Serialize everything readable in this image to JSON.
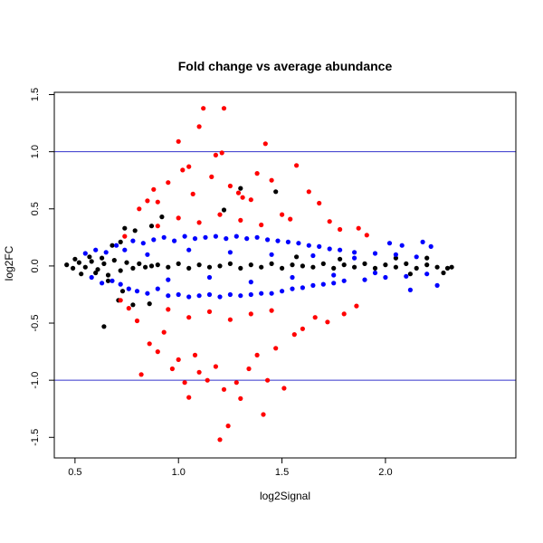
{
  "chart_data": {
    "type": "scatter",
    "title": "Fold change vs average abundance",
    "xlabel": "log2Signal",
    "ylabel": "log2FC",
    "xlim": [
      0.4,
      2.63
    ],
    "ylim": [
      -1.68,
      1.52
    ],
    "xticks": [
      0.5,
      1.0,
      1.5,
      2.0
    ],
    "xtick_labels": [
      "0.5",
      "1.0",
      "1.5",
      "2.0"
    ],
    "yticks": [
      -1.5,
      -1.0,
      -0.5,
      0.0,
      0.5,
      1.0,
      1.5
    ],
    "ytick_labels": [
      "-1.5",
      "-1.0",
      "-0.5",
      "0.0",
      "0.5",
      "1.0",
      "1.5"
    ],
    "grid": false,
    "reference_lines": {
      "y": [
        1.0,
        -1.0
      ],
      "color": "#3333cc"
    },
    "series": [
      {
        "color": "#000000",
        "points": [
          [
            0.46,
            0.01
          ],
          [
            0.49,
            -0.02
          ],
          [
            0.52,
            0.03
          ],
          [
            0.55,
            -0.01
          ],
          [
            0.58,
            0.04
          ],
          [
            0.61,
            -0.03
          ],
          [
            0.64,
            0.02
          ],
          [
            0.5,
            0.06
          ],
          [
            0.53,
            -0.07
          ],
          [
            0.57,
            0.08
          ],
          [
            0.6,
            -0.06
          ],
          [
            0.63,
            0.07
          ],
          [
            0.66,
            -0.08
          ],
          [
            0.69,
            0.05
          ],
          [
            0.72,
            -0.04
          ],
          [
            0.75,
            0.03
          ],
          [
            0.78,
            -0.02
          ],
          [
            0.81,
            0.02
          ],
          [
            0.84,
            -0.01
          ],
          [
            0.87,
            0.0
          ],
          [
            0.9,
            0.01
          ],
          [
            0.95,
            -0.01
          ],
          [
            1.0,
            0.02
          ],
          [
            1.05,
            -0.02
          ],
          [
            1.1,
            0.01
          ],
          [
            1.15,
            -0.01
          ],
          [
            1.2,
            0.0
          ],
          [
            1.25,
            0.02
          ],
          [
            1.3,
            -0.02
          ],
          [
            1.35,
            0.01
          ],
          [
            1.4,
            -0.01
          ],
          [
            1.45,
            0.02
          ],
          [
            1.5,
            -0.02
          ],
          [
            1.55,
            0.01
          ],
          [
            1.6,
            0.0
          ],
          [
            1.65,
            -0.01
          ],
          [
            1.7,
            0.02
          ],
          [
            1.75,
            -0.02
          ],
          [
            1.8,
            0.01
          ],
          [
            1.85,
            -0.01
          ],
          [
            1.9,
            0.02
          ],
          [
            1.95,
            -0.02
          ],
          [
            2.0,
            0.01
          ],
          [
            2.05,
            -0.01
          ],
          [
            2.1,
            0.02
          ],
          [
            2.15,
            -0.02
          ],
          [
            2.2,
            0.01
          ],
          [
            2.25,
            -0.01
          ],
          [
            2.3,
            -0.02
          ],
          [
            2.32,
            -0.01
          ],
          [
            0.64,
            -0.53
          ],
          [
            0.68,
            0.18
          ],
          [
            0.66,
            -0.13
          ],
          [
            0.72,
            0.21
          ],
          [
            0.73,
            -0.22
          ],
          [
            0.74,
            0.33
          ],
          [
            0.71,
            -0.3
          ],
          [
            0.78,
            -0.34
          ],
          [
            0.79,
            0.31
          ],
          [
            0.86,
            -0.33
          ],
          [
            0.87,
            0.35
          ],
          [
            0.92,
            0.43
          ],
          [
            1.22,
            0.49
          ],
          [
            1.3,
            0.68
          ],
          [
            1.47,
            0.65
          ],
          [
            1.57,
            0.08
          ],
          [
            1.78,
            0.06
          ],
          [
            2.05,
            0.07
          ],
          [
            2.12,
            -0.07
          ],
          [
            2.2,
            0.07
          ],
          [
            2.28,
            -0.06
          ]
        ]
      },
      {
        "color": "#0000ff",
        "points": [
          [
            0.55,
            0.11
          ],
          [
            0.58,
            -0.1
          ],
          [
            0.6,
            0.14
          ],
          [
            0.63,
            -0.15
          ],
          [
            0.65,
            0.12
          ],
          [
            0.68,
            -0.13
          ],
          [
            0.7,
            0.18
          ],
          [
            0.72,
            -0.16
          ],
          [
            0.74,
            0.14
          ],
          [
            0.76,
            -0.2
          ],
          [
            0.78,
            0.22
          ],
          [
            0.8,
            -0.22
          ],
          [
            0.83,
            0.2
          ],
          [
            0.85,
            -0.24
          ],
          [
            0.88,
            0.23
          ],
          [
            0.9,
            -0.2
          ],
          [
            0.93,
            0.25
          ],
          [
            0.95,
            -0.26
          ],
          [
            0.98,
            0.22
          ],
          [
            1.0,
            -0.25
          ],
          [
            1.03,
            0.26
          ],
          [
            1.05,
            -0.27
          ],
          [
            1.08,
            0.24
          ],
          [
            1.1,
            -0.26
          ],
          [
            1.13,
            0.25
          ],
          [
            1.15,
            -0.25
          ],
          [
            1.18,
            0.26
          ],
          [
            1.2,
            -0.27
          ],
          [
            1.23,
            0.24
          ],
          [
            1.25,
            -0.25
          ],
          [
            1.28,
            0.26
          ],
          [
            1.3,
            -0.26
          ],
          [
            1.33,
            0.24
          ],
          [
            1.35,
            -0.25
          ],
          [
            1.38,
            0.25
          ],
          [
            1.4,
            -0.24
          ],
          [
            1.43,
            0.23
          ],
          [
            1.45,
            -0.24
          ],
          [
            1.48,
            0.22
          ],
          [
            1.5,
            -0.22
          ],
          [
            1.53,
            0.21
          ],
          [
            1.55,
            -0.2
          ],
          [
            1.58,
            0.2
          ],
          [
            1.6,
            -0.19
          ],
          [
            1.63,
            0.18
          ],
          [
            1.65,
            -0.17
          ],
          [
            1.68,
            0.17
          ],
          [
            1.7,
            -0.16
          ],
          [
            1.73,
            0.15
          ],
          [
            1.75,
            -0.15
          ],
          [
            1.78,
            0.14
          ],
          [
            1.8,
            -0.13
          ],
          [
            1.85,
            0.12
          ],
          [
            1.9,
            -0.12
          ],
          [
            1.95,
            0.11
          ],
          [
            2.0,
            -0.1
          ],
          [
            2.05,
            0.1
          ],
          [
            2.1,
            -0.09
          ],
          [
            2.15,
            0.08
          ],
          [
            2.2,
            -0.07
          ],
          [
            0.85,
            0.1
          ],
          [
            0.95,
            -0.12
          ],
          [
            1.05,
            0.14
          ],
          [
            1.15,
            -0.1
          ],
          [
            1.25,
            0.12
          ],
          [
            1.35,
            -0.14
          ],
          [
            1.45,
            0.1
          ],
          [
            1.55,
            -0.1
          ],
          [
            1.65,
            0.09
          ],
          [
            1.75,
            -0.08
          ],
          [
            1.85,
            0.07
          ],
          [
            1.95,
            -0.06
          ],
          [
            2.02,
            0.2
          ],
          [
            2.08,
            0.18
          ],
          [
            2.12,
            -0.21
          ],
          [
            2.18,
            0.21
          ],
          [
            2.22,
            0.17
          ],
          [
            2.25,
            -0.17
          ]
        ]
      },
      {
        "color": "#ff0000",
        "points": [
          [
            0.74,
            0.26
          ],
          [
            0.81,
            0.5
          ],
          [
            0.85,
            0.57
          ],
          [
            0.88,
            0.67
          ],
          [
            0.9,
            0.56
          ],
          [
            0.95,
            0.73
          ],
          [
            1.0,
            1.09
          ],
          [
            1.02,
            0.84
          ],
          [
            1.05,
            0.87
          ],
          [
            1.07,
            0.63
          ],
          [
            1.1,
            1.22
          ],
          [
            1.12,
            1.38
          ],
          [
            1.16,
            0.78
          ],
          [
            1.18,
            0.97
          ],
          [
            1.21,
            0.99
          ],
          [
            1.22,
            1.38
          ],
          [
            1.25,
            0.7
          ],
          [
            1.29,
            0.64
          ],
          [
            1.31,
            0.6
          ],
          [
            1.35,
            0.58
          ],
          [
            1.38,
            0.81
          ],
          [
            1.42,
            1.07
          ],
          [
            1.45,
            0.75
          ],
          [
            1.5,
            0.45
          ],
          [
            1.54,
            0.41
          ],
          [
            1.57,
            0.88
          ],
          [
            1.63,
            0.65
          ],
          [
            1.68,
            0.55
          ],
          [
            1.73,
            0.39
          ],
          [
            1.78,
            0.32
          ],
          [
            1.87,
            0.33
          ],
          [
            1.91,
            0.27
          ],
          [
            0.72,
            -0.3
          ],
          [
            0.76,
            -0.37
          ],
          [
            0.8,
            -0.48
          ],
          [
            0.82,
            -0.95
          ],
          [
            0.86,
            -0.68
          ],
          [
            0.9,
            -0.75
          ],
          [
            0.93,
            -0.58
          ],
          [
            0.97,
            -0.9
          ],
          [
            1.0,
            -0.82
          ],
          [
            1.03,
            -1.02
          ],
          [
            1.05,
            -1.15
          ],
          [
            1.08,
            -0.78
          ],
          [
            1.1,
            -0.93
          ],
          [
            1.14,
            -1.0
          ],
          [
            1.18,
            -0.88
          ],
          [
            1.2,
            -1.52
          ],
          [
            1.22,
            -1.08
          ],
          [
            1.24,
            -1.4
          ],
          [
            1.28,
            -1.02
          ],
          [
            1.3,
            -1.16
          ],
          [
            1.34,
            -0.9
          ],
          [
            1.38,
            -0.78
          ],
          [
            1.41,
            -1.3
          ],
          [
            1.43,
            -1.0
          ],
          [
            1.47,
            -0.72
          ],
          [
            1.51,
            -1.07
          ],
          [
            1.56,
            -0.6
          ],
          [
            1.6,
            -0.55
          ],
          [
            1.66,
            -0.45
          ],
          [
            1.72,
            -0.49
          ],
          [
            1.8,
            -0.42
          ],
          [
            1.86,
            -0.35
          ],
          [
            0.9,
            0.35
          ],
          [
            1.0,
            0.42
          ],
          [
            1.1,
            0.38
          ],
          [
            1.2,
            0.45
          ],
          [
            1.3,
            0.4
          ],
          [
            1.4,
            0.36
          ],
          [
            0.95,
            -0.38
          ],
          [
            1.05,
            -0.45
          ],
          [
            1.15,
            -0.4
          ],
          [
            1.25,
            -0.47
          ],
          [
            1.35,
            -0.42
          ],
          [
            1.45,
            -0.39
          ]
        ]
      }
    ]
  }
}
